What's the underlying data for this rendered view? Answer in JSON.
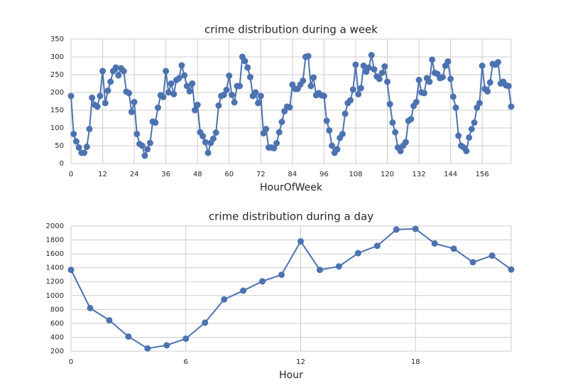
{
  "chart_data": [
    {
      "type": "line",
      "title": "crime distribution during a week",
      "xlabel": "HourOfWeek",
      "color": "#4c72b0",
      "grid": true,
      "x": [
        0,
        1,
        2,
        3,
        4,
        5,
        6,
        7,
        8,
        9,
        10,
        11,
        12,
        13,
        14,
        15,
        16,
        17,
        18,
        19,
        20,
        21,
        22,
        23,
        24,
        25,
        26,
        27,
        28,
        29,
        30,
        31,
        32,
        33,
        34,
        35,
        36,
        37,
        38,
        39,
        40,
        41,
        42,
        43,
        44,
        45,
        46,
        47,
        48,
        49,
        50,
        51,
        52,
        53,
        54,
        55,
        56,
        57,
        58,
        59,
        60,
        61,
        62,
        63,
        64,
        65,
        66,
        67,
        68,
        69,
        70,
        71,
        72,
        73,
        74,
        75,
        76,
        77,
        78,
        79,
        80,
        81,
        82,
        83,
        84,
        85,
        86,
        87,
        88,
        89,
        90,
        91,
        92,
        93,
        94,
        95,
        96,
        97,
        98,
        99,
        100,
        101,
        102,
        103,
        104,
        105,
        106,
        107,
        108,
        109,
        110,
        111,
        112,
        113,
        114,
        115,
        116,
        117,
        118,
        119,
        120,
        121,
        122,
        123,
        124,
        125,
        126,
        127,
        128,
        129,
        130,
        131,
        132,
        133,
        134,
        135,
        136,
        137,
        138,
        139,
        140,
        141,
        142,
        143,
        144,
        145,
        146,
        147,
        148,
        149,
        150,
        151,
        152,
        153,
        154,
        155,
        156,
        157,
        158,
        159,
        160,
        161,
        162,
        163,
        164,
        165,
        166,
        167
      ],
      "values": [
        190,
        83,
        62,
        45,
        30,
        30,
        47,
        97,
        185,
        165,
        160,
        190,
        260,
        170,
        205,
        230,
        260,
        270,
        248,
        268,
        260,
        202,
        198,
        145,
        173,
        83,
        55,
        50,
        22,
        40,
        58,
        118,
        115,
        157,
        192,
        187,
        260,
        200,
        225,
        195,
        235,
        240,
        276,
        248,
        218,
        203,
        225,
        150,
        165,
        88,
        77,
        60,
        30,
        58,
        70,
        87,
        163,
        190,
        193,
        207,
        247,
        193,
        172,
        218,
        218,
        300,
        288,
        270,
        243,
        190,
        200,
        170,
        190,
        85,
        97,
        45,
        45,
        43,
        57,
        88,
        117,
        147,
        160,
        158,
        222,
        210,
        210,
        222,
        233,
        300,
        302,
        218,
        242,
        192,
        198,
        192,
        190,
        120,
        93,
        50,
        30,
        40,
        72,
        83,
        140,
        170,
        178,
        208,
        278,
        195,
        212,
        275,
        258,
        270,
        305,
        265,
        245,
        238,
        255,
        273,
        230,
        167,
        115,
        88,
        45,
        35,
        50,
        60,
        120,
        125,
        162,
        173,
        235,
        200,
        198,
        240,
        230,
        292,
        255,
        252,
        240,
        243,
        275,
        287,
        238,
        188,
        157,
        78,
        50,
        45,
        35,
        73,
        97,
        115,
        157,
        170,
        275,
        210,
        203,
        228,
        280,
        278,
        285,
        225,
        230,
        220,
        218,
        160
      ],
      "xlim": [
        0,
        167
      ],
      "xticks": [
        0,
        12,
        24,
        36,
        48,
        60,
        72,
        84,
        96,
        108,
        120,
        132,
        144,
        156
      ],
      "ylim": [
        0,
        350
      ],
      "yticks": [
        0,
        50,
        100,
        150,
        200,
        250,
        300,
        350
      ]
    },
    {
      "type": "line",
      "title": "crime distribution during a day",
      "xlabel": "Hour",
      "color": "#4c72b0",
      "grid": true,
      "x": [
        0,
        1,
        2,
        3,
        4,
        5,
        6,
        7,
        8,
        9,
        10,
        11,
        12,
        13,
        14,
        15,
        16,
        17,
        18,
        19,
        20,
        21,
        22,
        23
      ],
      "values": [
        1370,
        820,
        645,
        410,
        240,
        285,
        380,
        610,
        945,
        1070,
        1205,
        1300,
        1780,
        1370,
        1420,
        1610,
        1715,
        1950,
        1960,
        1750,
        1675,
        1480,
        1575,
        1375
      ],
      "xlim": [
        0,
        23
      ],
      "xticks": [
        0,
        6,
        12,
        18
      ],
      "ylim": [
        200,
        2000
      ],
      "yticks": [
        200,
        400,
        600,
        800,
        1000,
        1200,
        1400,
        1600,
        1800,
        2000
      ]
    }
  ]
}
